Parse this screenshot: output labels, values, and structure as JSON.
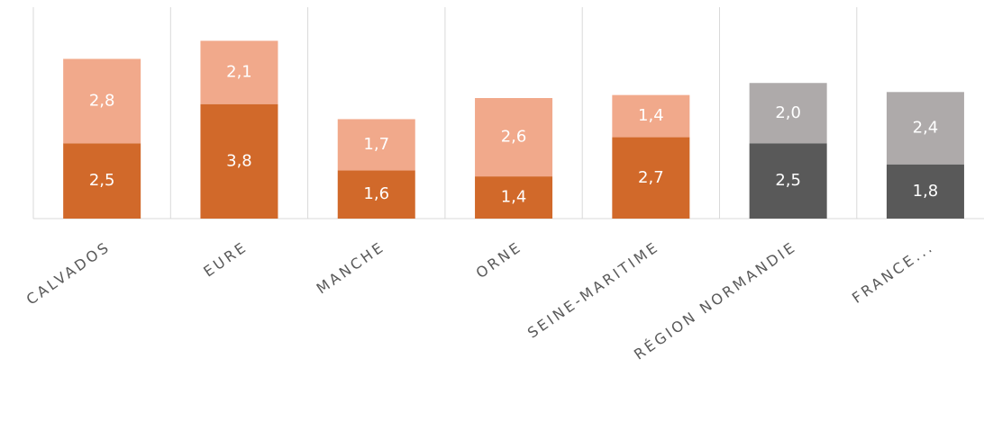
{
  "chart_data": {
    "type": "stacked_bar",
    "categories": [
      "CALVADOS",
      "EURE",
      "MANCHE",
      "ORNE",
      "SEINE-MARITIME",
      "RÉGION NORMANDIE",
      "FRANCE..."
    ],
    "series": [
      {
        "values": [
          2.5,
          3.8,
          1.6,
          1.4,
          2.7,
          2.5,
          1.8
        ],
        "value_labels": [
          "2,5",
          "3,8",
          "1,6",
          "1,4",
          "2,7",
          "2,5",
          "1,8"
        ],
        "colors": [
          "#d1692a",
          "#d1692a",
          "#d1692a",
          "#d1692a",
          "#d1692a",
          "#595959",
          "#595959"
        ]
      },
      {
        "values": [
          2.8,
          2.1,
          1.7,
          2.6,
          1.4,
          2.0,
          2.4
        ],
        "value_labels": [
          "2,8",
          "2,1",
          "1,7",
          "2,6",
          "1,4",
          "2,0",
          "2,4"
        ],
        "colors": [
          "#f1a98b",
          "#f1a98b",
          "#f1a98b",
          "#f1a98b",
          "#f1a98b",
          "#aeaaaa",
          "#aeaaaa"
        ]
      }
    ]
  }
}
